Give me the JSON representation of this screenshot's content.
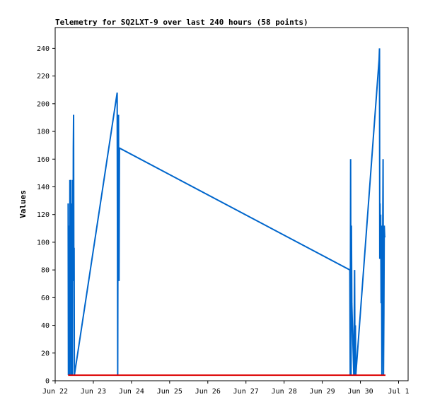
{
  "chart_data": {
    "type": "line",
    "title": "Telemetry for SQ2LXT-9 over last 240 hours (58 points)",
    "xlabel": "",
    "ylabel": "Values",
    "xlim": [
      "Jun 22 00:00",
      "Jul 1 06:00"
    ],
    "ylim": [
      0,
      255
    ],
    "yticks": [
      0,
      20,
      40,
      60,
      80,
      100,
      120,
      140,
      160,
      180,
      200,
      220,
      240
    ],
    "xticks": [
      "Jun 22",
      "Jun 23",
      "Jun 24",
      "Jun 25",
      "Jun 26",
      "Jun 27",
      "Jun 28",
      "Jun 29",
      "Jun 30",
      "Jul 1"
    ],
    "grid": false,
    "series": [
      {
        "color": "#0066cc",
        "x": [
          "Jun 22 08:10",
          "Jun 22 08:20",
          "Jun 22 08:35",
          "Jun 22 08:45",
          "Jun 22 08:55",
          "Jun 22 09:05",
          "Jun 22 09:15",
          "Jun 22 09:25",
          "Jun 22 09:35",
          "Jun 22 09:50",
          "Jun 22 10:00",
          "Jun 22 10:10",
          "Jun 22 10:25",
          "Jun 22 10:35",
          "Jun 22 10:50",
          "Jun 22 11:00",
          "Jun 22 11:15",
          "Jun 22 11:25",
          "Jun 22 11:35",
          "Jun 22 11:45",
          "Jun 22 11:55",
          "Jun 22 12:05",
          "Jun 23 15:00",
          "Jun 23 15:20",
          "Jun 23 15:35",
          "Jun 23 15:50",
          "Jun 23 16:10",
          "Jun 23 16:25",
          "Jun 29 17:20",
          "Jun 29 17:35",
          "Jun 29 17:50",
          "Jun 29 18:05",
          "Jun 29 18:20",
          "Jun 29 18:35",
          "Jun 29 19:50",
          "Jun 29 20:05",
          "Jun 29 20:20",
          "Jun 29 20:35",
          "Jun 29 20:50",
          "Jun 29 21:05",
          "Jun 30 11:45",
          "Jun 30 12:00",
          "Jun 30 12:10",
          "Jun 30 12:20",
          "Jun 30 12:30",
          "Jun 30 12:45",
          "Jun 30 13:00",
          "Jun 30 13:15",
          "Jun 30 13:30",
          "Jun 30 13:45",
          "Jun 30 14:00",
          "Jun 30 14:15",
          "Jun 30 14:30",
          "Jun 30 14:45",
          "Jun 30 15:00",
          "Jun 30 15:15",
          "Jun 30 15:30",
          "Jun 30 15:45"
        ],
        "values": [
          128,
          4,
          56,
          16,
          112,
          4,
          145,
          56,
          72,
          145,
          4,
          128,
          64,
          120,
          4,
          145,
          72,
          168,
          192,
          72,
          96,
          4,
          208,
          4,
          184,
          192,
          72,
          168,
          80,
          4,
          160,
          4,
          112,
          56,
          4,
          40,
          80,
          4,
          40,
          4,
          232,
          240,
          88,
          128,
          104,
          120,
          56,
          112,
          4,
          80,
          104,
          160,
          4,
          48,
          112,
          104,
          104,
          104
        ]
      },
      {
        "color": "#dd0000",
        "x": [
          "Jun 22 08:10",
          "Jun 30 15:45"
        ],
        "values": [
          4,
          4
        ]
      }
    ]
  }
}
